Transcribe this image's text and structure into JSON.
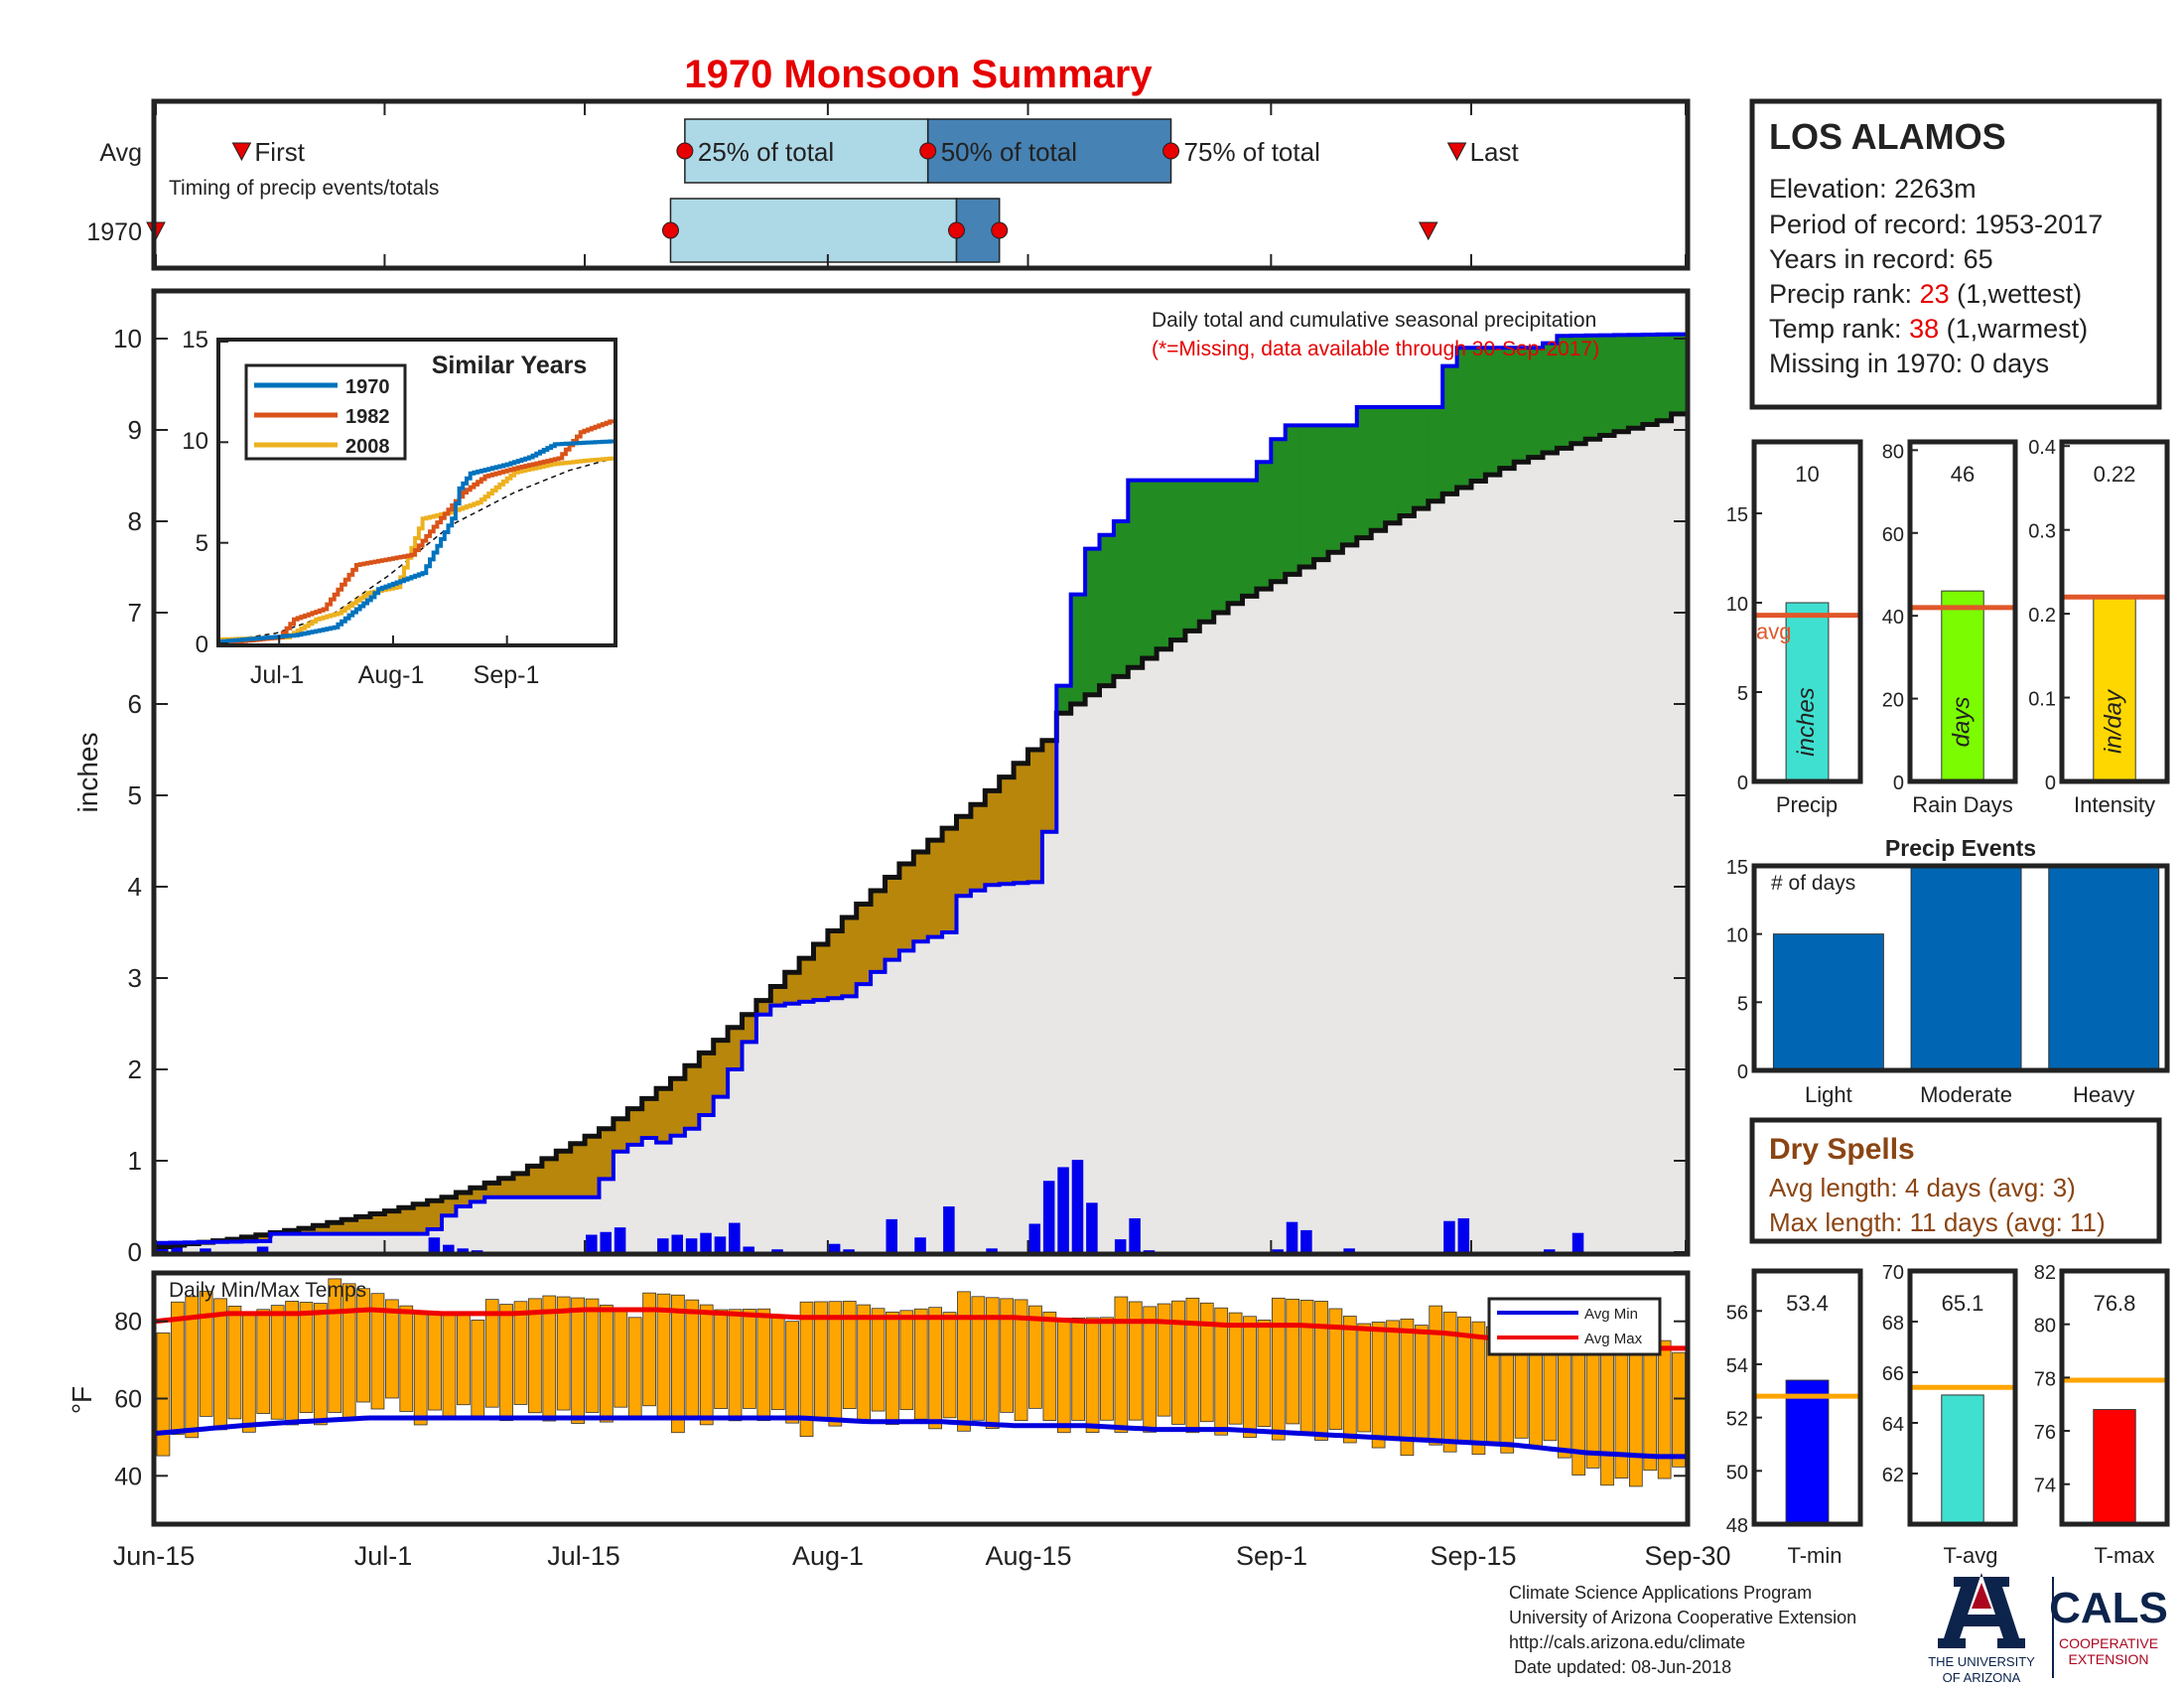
{
  "title": "1970 Monsoon Summary",
  "colors": {
    "title": "#e60000",
    "frame": "#222222",
    "q25": "#add8e6",
    "q50": "#4682b4",
    "marker": "#e60000",
    "dry_fill": "#b8860b",
    "wet_fill": "#228b22",
    "avg_fill": "#e8e7e6",
    "cum_line": "#0000ee",
    "daily_bar": "#0000ee",
    "temp_bar": "#ffa500",
    "avg_min": "#0000dd",
    "avg_max": "#ee0000",
    "precip_bar": "#40e0d0",
    "days_bar": "#7cfc00",
    "intensity_bar": "#ffd700",
    "avg_line_orange": "#e0572a",
    "avg_line_gold": "#ffa500",
    "events_bar": "#0066b3",
    "tmin_bar": "#0000ff",
    "tavg_bar": "#40e0d0",
    "tmax_bar": "#ff0000",
    "dry_text": "#8b4513",
    "rank_red": "#e60000",
    "ua_blue": "#0c234b",
    "ua_red": "#ab0520"
  },
  "timing": {
    "row_labels": [
      "Avg",
      "1970"
    ],
    "subtitle": "Timing of precip events/totals",
    "avg_labels": {
      "first": "First",
      "q25": "25% of total",
      "q50": "50% of total",
      "q75": "75% of total",
      "last": "Last"
    },
    "avg_days": {
      "first": 6,
      "q25": 37,
      "q50": 54,
      "q75": 71,
      "last": 91
    },
    "y1970_days": {
      "first": 0,
      "q25": 36,
      "q50": 56,
      "q75": 59,
      "last": 89
    }
  },
  "main_axis": {
    "ylabel": "inches",
    "subtitle_line1": "Daily total and cumulative seasonal precipitation",
    "subtitle_line2": "(*=Missing, data available through 30-Sep-2017)"
  },
  "x_ticks": [
    "Jun-15",
    "Jul-1",
    "Jul-15",
    "Aug-1",
    "Aug-15",
    "Sep-1",
    "Sep-15",
    "Sep-30"
  ],
  "inset": {
    "title": "Similar Years",
    "legend": [
      "1970",
      "1982",
      "2008"
    ],
    "series_colors": [
      "#0072bd",
      "#d95319",
      "#edb120"
    ],
    "x_ticks": [
      "Jul-1",
      "Aug-1",
      "Sep-1"
    ],
    "y_ticks": [
      "0",
      "5",
      "10",
      "15"
    ]
  },
  "temps": {
    "title": "Daily Min/Max Temps",
    "ylabel": "°F",
    "legend": [
      "Avg Min",
      "Avg Max"
    ],
    "y_ticks": [
      "40",
      "60",
      "80"
    ]
  },
  "station": {
    "name": "LOS ALAMOS",
    "elevation": "Elevation: 2263m",
    "period": "Period of record: 1953-2017",
    "years": "Years in record: 65",
    "precip_rank_label": "Precip rank: ",
    "precip_rank_value": "23",
    "precip_rank_suffix": " (1,wettest)",
    "temp_rank_label": "Temp rank: ",
    "temp_rank_value": "38",
    "temp_rank_suffix": " (1,warmest)",
    "missing": "Missing in 1970: 0 days"
  },
  "stats": {
    "precip": {
      "value_label": "10",
      "value": 10.0,
      "avg": 9.3,
      "ymax": 19,
      "ticks": [
        "0",
        "5",
        "10",
        "15"
      ],
      "tick_values": [
        0,
        5,
        10,
        15
      ],
      "xlabel": "Precip",
      "inner": "inches",
      "avg_text": "avg"
    },
    "rain_days": {
      "value_label": "46",
      "value": 46,
      "avg": 42,
      "ymax": 82,
      "ticks": [
        "0",
        "20",
        "40",
        "60",
        "80"
      ],
      "tick_values": [
        0,
        20,
        40,
        60,
        80
      ],
      "xlabel": "Rain Days",
      "inner": "days"
    },
    "intensity": {
      "value_label": "0.22",
      "value": 0.22,
      "avg": 0.22,
      "ymax": 0.405,
      "ticks": [
        "0",
        "0.1",
        "0.2",
        "0.3",
        "0.4"
      ],
      "tick_values": [
        0,
        0.1,
        0.2,
        0.3,
        0.4
      ],
      "xlabel": "Intensity",
      "inner": "in/day"
    }
  },
  "events": {
    "title": "Precip Events",
    "ylabel_text": "# of days",
    "categories": [
      "Light",
      "Moderate",
      "Heavy"
    ],
    "values": [
      10,
      15,
      15
    ],
    "ymax": 15,
    "ticks": [
      "0",
      "5",
      "10",
      "15"
    ]
  },
  "dry_spells": {
    "title": "Dry Spells",
    "avg_line": "Avg length: 4 days (avg: 3)",
    "max_line": "Max length: 11 days (avg: 11)"
  },
  "temp_stats": {
    "tmin": {
      "value_label": "53.4",
      "value": 53.4,
      "avg": 52.8,
      "ymin": 48,
      "ymax": 57.5,
      "ticks": [
        "48",
        "50",
        "52",
        "54",
        "56"
      ],
      "tick_values": [
        48,
        50,
        52,
        54,
        56
      ],
      "xlabel": "T-min"
    },
    "tavg": {
      "value_label": "65.1",
      "value": 65.1,
      "avg": 65.4,
      "ymin": 60,
      "ymax": 70,
      "ticks": [
        "62",
        "64",
        "66",
        "68",
        "70"
      ],
      "tick_values": [
        62,
        64,
        66,
        68,
        70
      ],
      "xlabel": "T-avg"
    },
    "tmax": {
      "value_label": "76.8",
      "value": 76.8,
      "avg": 77.9,
      "ymin": 72.5,
      "ymax": 82,
      "ticks": [
        "74",
        "76",
        "78",
        "80",
        "82"
      ],
      "tick_values": [
        74,
        76,
        78,
        80,
        82
      ],
      "xlabel": "T-max"
    }
  },
  "footer": {
    "line1": "Climate Science Applications Program",
    "line2": "University of Arizona Cooperative Extension",
    "line3": "http://cals.arizona.edu/climate",
    "line4": " Date updated: 08-Jun-2018"
  },
  "logos": {
    "ua_text1": "THE UNIVERSITY",
    "ua_text2": "OF ARIZONA",
    "cals": "CALS",
    "coop1": "COOPERATIVE",
    "coop2": "EXTENSION"
  },
  "chart_data": {
    "type": "area",
    "x_unit": "days since Jun-15",
    "x_range": [
      0,
      107
    ],
    "ylim": [
      0,
      10.5
    ],
    "y_ticks": [
      0,
      1,
      2,
      3,
      4,
      5,
      6,
      7,
      8,
      9,
      10
    ],
    "avg_cumulative": [
      [
        0,
        0.06
      ],
      [
        5,
        0.14
      ],
      [
        10,
        0.26
      ],
      [
        16,
        0.45
      ],
      [
        20,
        0.6
      ],
      [
        25,
        0.86
      ],
      [
        31,
        1.35
      ],
      [
        36,
        1.9
      ],
      [
        41,
        2.6
      ],
      [
        46,
        3.37
      ],
      [
        52,
        4.25
      ],
      [
        57,
        4.9
      ],
      [
        61,
        5.5
      ],
      [
        62,
        5.6
      ],
      [
        63,
        5.9
      ],
      [
        67,
        6.3
      ],
      [
        70,
        6.6
      ],
      [
        75,
        7.1
      ],
      [
        80,
        7.5
      ],
      [
        85,
        7.9
      ],
      [
        90,
        8.3
      ],
      [
        95,
        8.65
      ],
      [
        100,
        8.9
      ],
      [
        105,
        9.1
      ],
      [
        107,
        9.25
      ]
    ],
    "cum_1970": [
      [
        0,
        0.1
      ],
      [
        7,
        0.12
      ],
      [
        8,
        0.2
      ],
      [
        18,
        0.2
      ],
      [
        19,
        0.25
      ],
      [
        20,
        0.4
      ],
      [
        21,
        0.5
      ],
      [
        22,
        0.55
      ],
      [
        23,
        0.6
      ],
      [
        30,
        0.6
      ],
      [
        31,
        0.8
      ],
      [
        32,
        1.1
      ],
      [
        34,
        1.25
      ],
      [
        35,
        1.2
      ],
      [
        37,
        1.35
      ],
      [
        38,
        1.5
      ],
      [
        39,
        1.7
      ],
      [
        40,
        2.0
      ],
      [
        41,
        2.3
      ],
      [
        42,
        2.6
      ],
      [
        43,
        2.7
      ],
      [
        48,
        2.8
      ],
      [
        51,
        3.2
      ],
      [
        53,
        3.4
      ],
      [
        55,
        3.5
      ],
      [
        56,
        3.9
      ],
      [
        58,
        4.02
      ],
      [
        61,
        4.05
      ],
      [
        61.5,
        4.5
      ],
      [
        62,
        4.6
      ],
      [
        63,
        6.2
      ],
      [
        64,
        7.2
      ],
      [
        65,
        7.7
      ],
      [
        67,
        8.0
      ],
      [
        68,
        8.45
      ],
      [
        76,
        8.45
      ],
      [
        77,
        8.65
      ],
      [
        78,
        8.9
      ],
      [
        79,
        9.05
      ],
      [
        83,
        9.05
      ],
      [
        84,
        9.25
      ],
      [
        89,
        9.25
      ],
      [
        90,
        9.7
      ],
      [
        91,
        9.9
      ],
      [
        96,
        9.9
      ],
      [
        97,
        9.95
      ],
      [
        98,
        10.03
      ],
      [
        107,
        10.05
      ]
    ],
    "daily_1970": [
      [
        0,
        0.07
      ],
      [
        1,
        0.05
      ],
      [
        3,
        0.04
      ],
      [
        7,
        0.06
      ],
      [
        19,
        0.16
      ],
      [
        20,
        0.08
      ],
      [
        21,
        0.04
      ],
      [
        22,
        0.02
      ],
      [
        30,
        0.19
      ],
      [
        31,
        0.22
      ],
      [
        32,
        0.27
      ],
      [
        35,
        0.15
      ],
      [
        36,
        0.19
      ],
      [
        37,
        0.15
      ],
      [
        38,
        0.21
      ],
      [
        39,
        0.17
      ],
      [
        40,
        0.32
      ],
      [
        41,
        0.06
      ],
      [
        43,
        0.03
      ],
      [
        47,
        0.09
      ],
      [
        48,
        0.03
      ],
      [
        51,
        0.36
      ],
      [
        53,
        0.16
      ],
      [
        55,
        0.5
      ],
      [
        58,
        0.04
      ],
      [
        61,
        0.31
      ],
      [
        62,
        0.78
      ],
      [
        63,
        0.93
      ],
      [
        64,
        1.01
      ],
      [
        65,
        0.54
      ],
      [
        67,
        0.14
      ],
      [
        68,
        0.37
      ],
      [
        69,
        0.02
      ],
      [
        78,
        0.03
      ],
      [
        79,
        0.33
      ],
      [
        80,
        0.24
      ],
      [
        83,
        0.04
      ],
      [
        90,
        0.34
      ],
      [
        91,
        0.37
      ],
      [
        97,
        0.03
      ],
      [
        99,
        0.21
      ]
    ],
    "temps": {
      "ylim": [
        28,
        92
      ],
      "avg_max": [
        [
          0,
          80
        ],
        [
          5,
          82
        ],
        [
          10,
          82
        ],
        [
          15,
          83
        ],
        [
          20,
          82
        ],
        [
          25,
          82
        ],
        [
          30,
          83
        ],
        [
          35,
          83
        ],
        [
          40,
          82
        ],
        [
          45,
          81
        ],
        [
          50,
          81
        ],
        [
          55,
          81
        ],
        [
          60,
          81
        ],
        [
          65,
          80
        ],
        [
          70,
          80
        ],
        [
          75,
          79
        ],
        [
          80,
          79
        ],
        [
          85,
          78
        ],
        [
          90,
          77
        ],
        [
          95,
          75
        ],
        [
          100,
          74
        ],
        [
          105,
          73
        ],
        [
          107,
          73
        ]
      ],
      "avg_min": [
        [
          0,
          51
        ],
        [
          3,
          52
        ],
        [
          6,
          53
        ],
        [
          10,
          54
        ],
        [
          15,
          55
        ],
        [
          20,
          55
        ],
        [
          25,
          55
        ],
        [
          30,
          55
        ],
        [
          35,
          55
        ],
        [
          40,
          55
        ],
        [
          45,
          55
        ],
        [
          50,
          54
        ],
        [
          55,
          54
        ],
        [
          60,
          53
        ],
        [
          65,
          53
        ],
        [
          70,
          52
        ],
        [
          75,
          52
        ],
        [
          80,
          51
        ],
        [
          85,
          50
        ],
        [
          90,
          49
        ],
        [
          95,
          48
        ],
        [
          100,
          46
        ],
        [
          105,
          45
        ],
        [
          107,
          45
        ]
      ],
      "daily_max_anchors": [
        [
          0,
          80
        ],
        [
          3,
          86
        ],
        [
          6,
          82
        ],
        [
          9,
          87
        ],
        [
          12,
          88
        ],
        [
          15,
          86
        ],
        [
          18,
          83
        ],
        [
          21,
          84
        ],
        [
          24,
          82
        ],
        [
          27,
          86
        ],
        [
          30,
          87
        ],
        [
          33,
          84
        ],
        [
          36,
          85
        ],
        [
          39,
          83
        ],
        [
          42,
          85
        ],
        [
          45,
          82
        ],
        [
          48,
          84
        ],
        [
          51,
          83
        ],
        [
          54,
          86
        ],
        [
          57,
          84
        ],
        [
          60,
          85
        ],
        [
          63,
          82
        ],
        [
          66,
          84
        ],
        [
          69,
          82
        ],
        [
          72,
          86
        ],
        [
          75,
          84
        ],
        [
          78,
          83
        ],
        [
          81,
          84
        ],
        [
          84,
          80
        ],
        [
          87,
          83
        ],
        [
          90,
          80
        ],
        [
          93,
          78
        ],
        [
          96,
          80
        ],
        [
          99,
          77
        ],
        [
          102,
          74
        ],
        [
          105,
          75
        ],
        [
          107,
          70
        ]
      ],
      "daily_min_anchors": [
        [
          0,
          48
        ],
        [
          3,
          54
        ],
        [
          6,
          52
        ],
        [
          9,
          56
        ],
        [
          12,
          55
        ],
        [
          15,
          58
        ],
        [
          18,
          56
        ],
        [
          21,
          57
        ],
        [
          24,
          55
        ],
        [
          27,
          57
        ],
        [
          30,
          55
        ],
        [
          33,
          56
        ],
        [
          36,
          54
        ],
        [
          39,
          56
        ],
        [
          42,
          55
        ],
        [
          45,
          53
        ],
        [
          48,
          56
        ],
        [
          51,
          54
        ],
        [
          54,
          55
        ],
        [
          57,
          53
        ],
        [
          60,
          55
        ],
        [
          63,
          54
        ],
        [
          66,
          53
        ],
        [
          69,
          52
        ],
        [
          72,
          54
        ],
        [
          75,
          52
        ],
        [
          78,
          50
        ],
        [
          81,
          52
        ],
        [
          84,
          50
        ],
        [
          87,
          46
        ],
        [
          90,
          49
        ],
        [
          93,
          47
        ],
        [
          96,
          48
        ],
        [
          99,
          43
        ],
        [
          102,
          38
        ],
        [
          105,
          40
        ],
        [
          107,
          39
        ]
      ]
    },
    "similar_years": {
      "x_range": [
        0,
        107
      ],
      "ylim": [
        0,
        15
      ],
      "avg": [
        [
          0,
          0.1
        ],
        [
          15,
          0.5
        ],
        [
          31,
          1.5
        ],
        [
          46,
          3.4
        ],
        [
          63,
          5.9
        ],
        [
          80,
          7.5
        ],
        [
          95,
          8.6
        ],
        [
          107,
          9.2
        ]
      ],
      "1970": [
        [
          0,
          0.1
        ],
        [
          20,
          0.4
        ],
        [
          31,
          0.8
        ],
        [
          41,
          2.3
        ],
        [
          43,
          2.7
        ],
        [
          55,
          3.5
        ],
        [
          63,
          6.2
        ],
        [
          65,
          7.7
        ],
        [
          68,
          8.45
        ],
        [
          78,
          8.9
        ],
        [
          84,
          9.25
        ],
        [
          91,
          9.9
        ],
        [
          107,
          10.05
        ]
      ],
      "1982": [
        [
          0,
          0
        ],
        [
          16,
          0.3
        ],
        [
          20,
          1.2
        ],
        [
          28,
          1.7
        ],
        [
          37,
          3.9
        ],
        [
          46,
          4.2
        ],
        [
          52,
          4.4
        ],
        [
          58,
          5.8
        ],
        [
          66,
          7.5
        ],
        [
          72,
          8.3
        ],
        [
          80,
          8.7
        ],
        [
          92,
          9.2
        ],
        [
          98,
          10.5
        ],
        [
          107,
          11.1
        ]
      ],
      "2008": [
        [
          0,
          0.2
        ],
        [
          18,
          0.3
        ],
        [
          26,
          1.2
        ],
        [
          32,
          1.5
        ],
        [
          40,
          2.5
        ],
        [
          48,
          2.8
        ],
        [
          55,
          6.2
        ],
        [
          62,
          6.5
        ],
        [
          70,
          7.0
        ],
        [
          80,
          8.5
        ],
        [
          90,
          8.9
        ],
        [
          100,
          9.1
        ],
        [
          107,
          9.2
        ]
      ]
    }
  }
}
